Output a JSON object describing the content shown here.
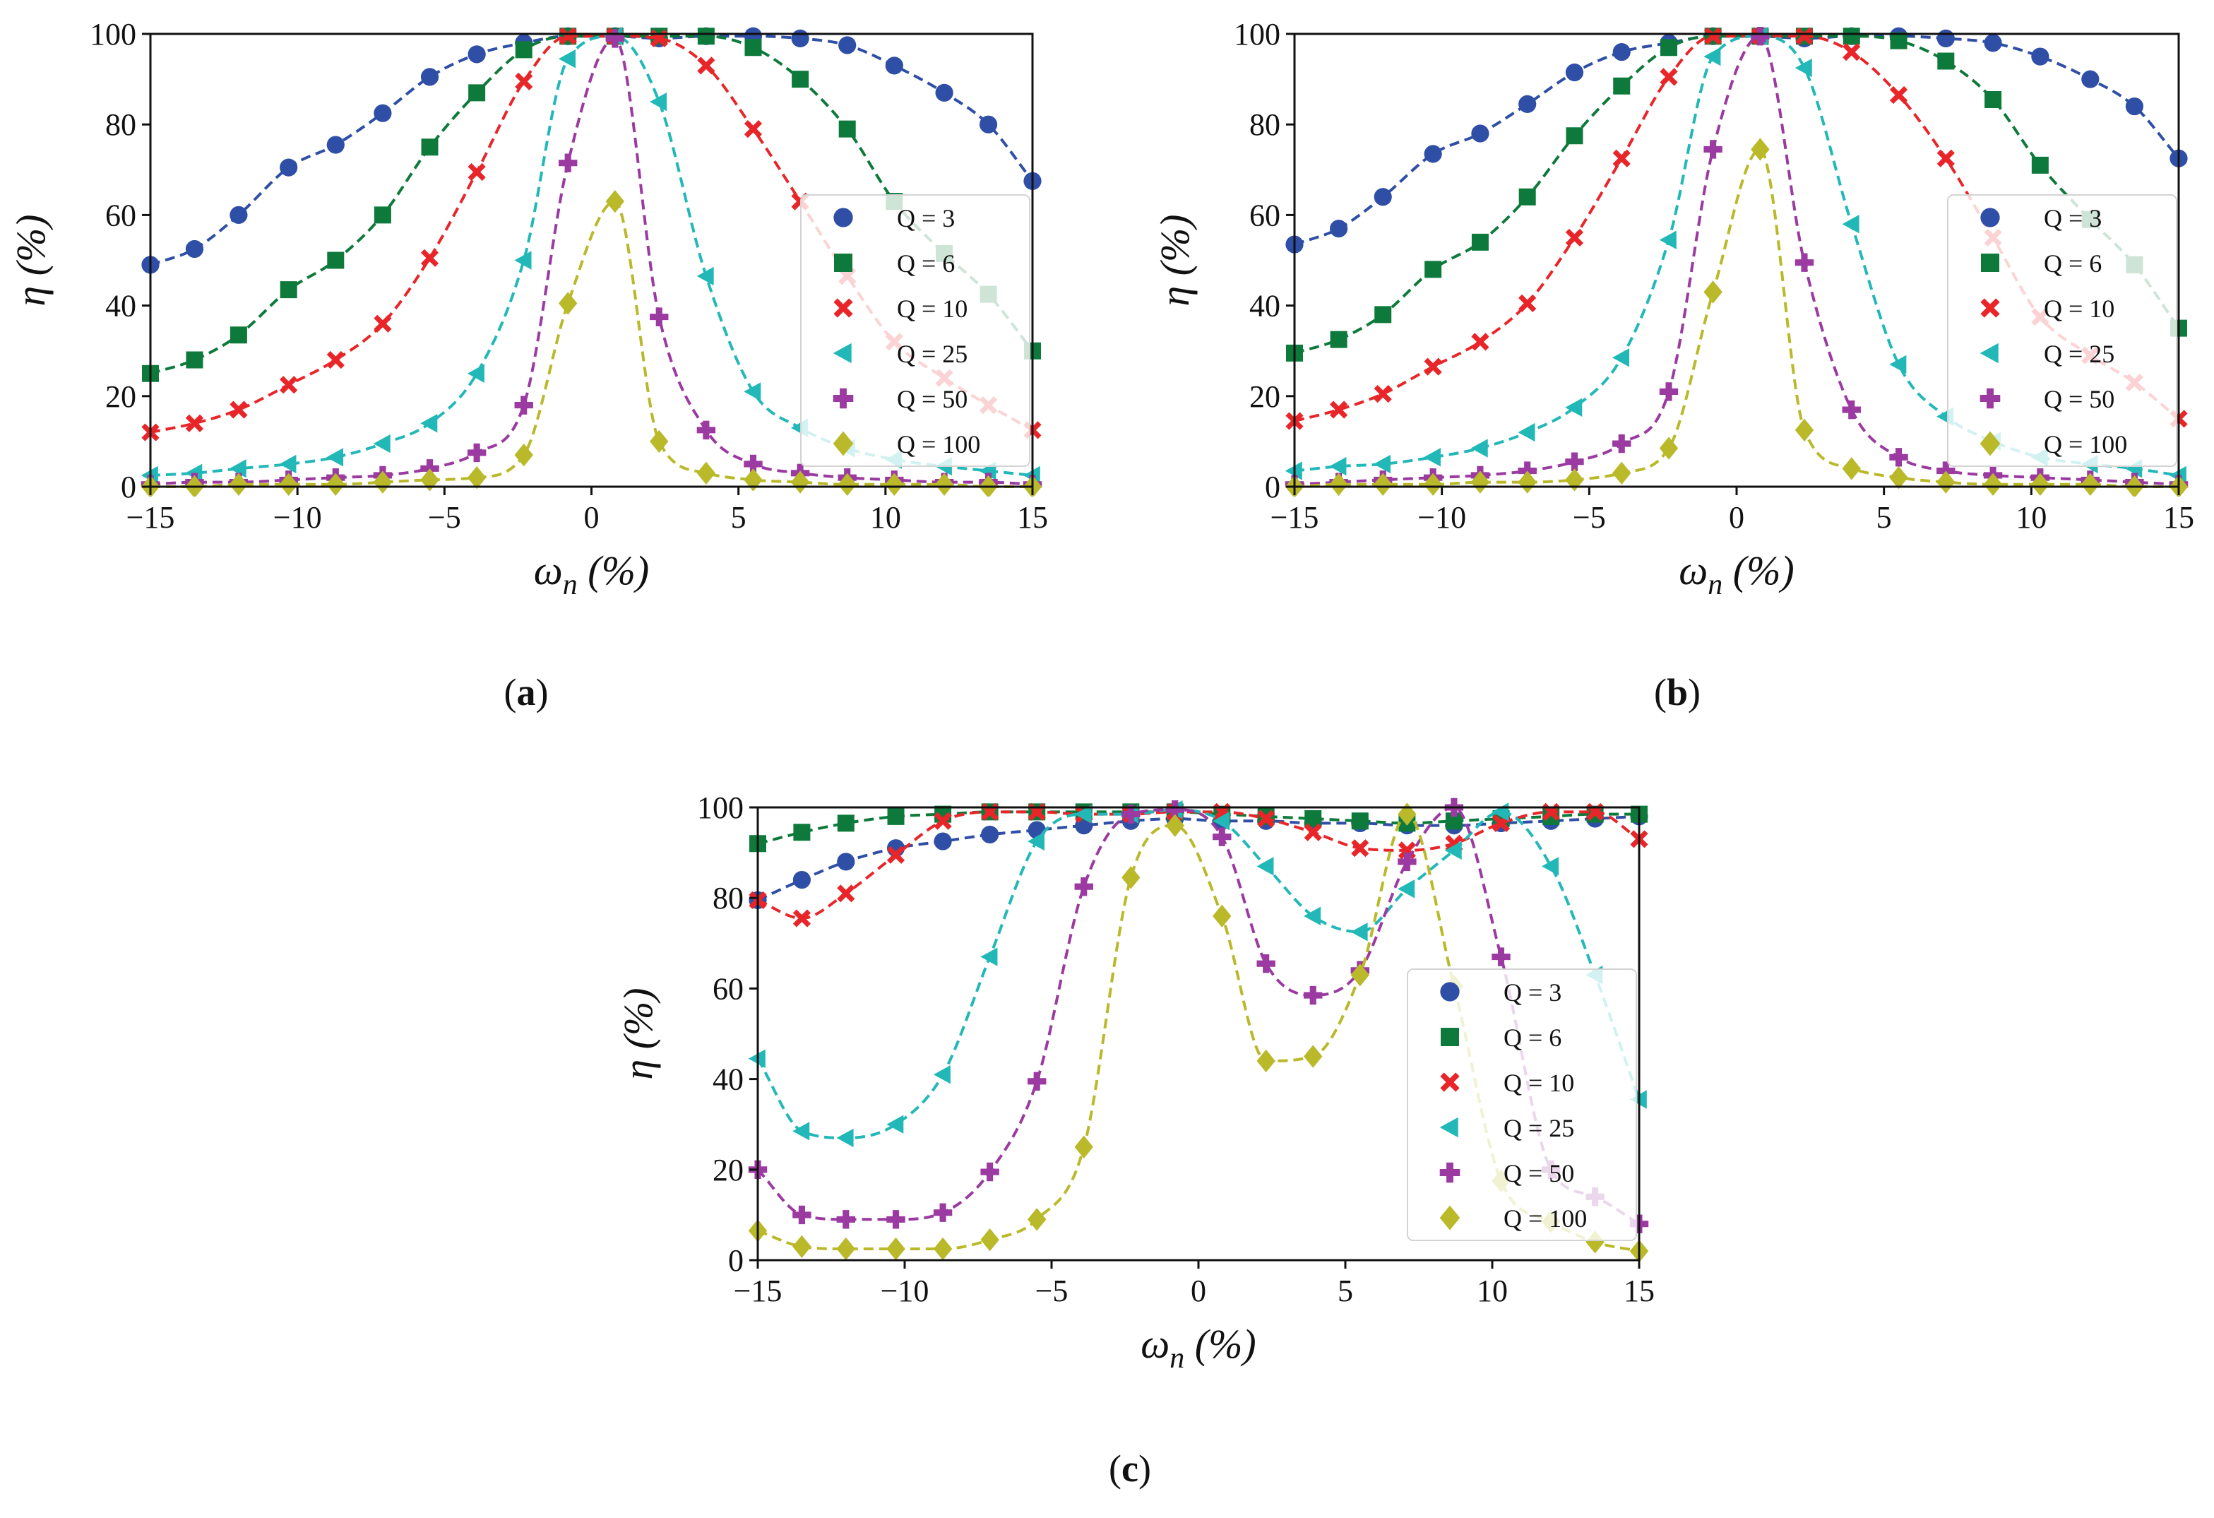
{
  "colors": {
    "Q3": "#2f4fa6",
    "Q6": "#0d7a3b",
    "Q10": "#e8262a",
    "Q25": "#22b8b8",
    "Q50": "#9b3aa1",
    "Q100": "#b9b92a"
  },
  "chart_data": [
    {
      "type": "line",
      "panel": "(a)",
      "xlabel": "ωn (%)",
      "ylabel": "η (%)",
      "xlim": [
        -15,
        15
      ],
      "ylim": [
        0,
        100
      ],
      "xticks": [
        "−15",
        "−10",
        "−5",
        "0",
        "5",
        "10",
        "15"
      ],
      "yticks": [
        "0",
        "20",
        "40",
        "60",
        "80",
        "100"
      ],
      "legend_position": "right",
      "x": [
        -15,
        -13.5,
        -12,
        -10.3,
        -8.7,
        -7.1,
        -5.5,
        -3.9,
        -2.3,
        -0.8,
        0.8,
        2.3,
        3.9,
        5.5,
        7.1,
        8.7,
        10.3,
        12,
        13.5,
        15
      ],
      "series": [
        {
          "name": "Q = 3",
          "marker": "circle",
          "color_key": "Q3",
          "values": [
            49,
            52.5,
            60,
            70.5,
            75.5,
            82.5,
            90.5,
            95.5,
            98,
            99.5,
            99.5,
            99,
            99.5,
            99.5,
            99,
            97.5,
            93,
            87,
            80,
            67.5
          ]
        },
        {
          "name": "Q = 6",
          "marker": "square",
          "color_key": "Q6",
          "values": [
            25,
            28,
            33.5,
            43.5,
            50,
            60,
            75,
            87,
            96.5,
            99.5,
            99.5,
            99.5,
            99.5,
            97,
            90,
            79,
            63,
            51.5,
            42.5,
            30
          ]
        },
        {
          "name": "Q = 10",
          "marker": "x",
          "color_key": "Q10",
          "values": [
            12,
            14,
            17,
            22.5,
            28,
            36,
            50.5,
            69.5,
            89.5,
            99.5,
            99.5,
            99,
            93,
            79,
            63,
            46.5,
            32,
            24,
            18,
            12.5
          ]
        },
        {
          "name": "Q = 25",
          "marker": "triangle-left",
          "color_key": "Q25",
          "values": [
            2.5,
            3,
            4,
            5,
            6.5,
            9.5,
            14,
            25,
            50,
            94.5,
            99.5,
            85,
            46.5,
            21,
            13,
            8.5,
            6,
            4.5,
            3.5,
            2.5
          ]
        },
        {
          "name": "Q = 50",
          "marker": "plus",
          "color_key": "Q50",
          "values": [
            0.5,
            1,
            1,
            1.5,
            2,
            2.5,
            4,
            7.5,
            18,
            71.5,
            99,
            37.5,
            12.5,
            5,
            3,
            2,
            1.5,
            1,
            1,
            0.5
          ]
        },
        {
          "name": "Q = 100",
          "marker": "diamond",
          "color_key": "Q100",
          "values": [
            0,
            0,
            0.5,
            0.5,
            0.5,
            1,
            1.5,
            2,
            7,
            40.5,
            63,
            10,
            3,
            1.5,
            1,
            0.5,
            0.5,
            0.5,
            0,
            0
          ]
        }
      ]
    },
    {
      "type": "line",
      "panel": "(b)",
      "xlabel": "ωn (%)",
      "ylabel": "η (%)",
      "xlim": [
        -15,
        15
      ],
      "ylim": [
        0,
        100
      ],
      "xticks": [
        "−15",
        "−10",
        "−5",
        "0",
        "5",
        "10",
        "15"
      ],
      "yticks": [
        "0",
        "20",
        "40",
        "60",
        "80",
        "100"
      ],
      "legend_position": "right",
      "x": [
        -15,
        -13.5,
        -12,
        -10.3,
        -8.7,
        -7.1,
        -5.5,
        -3.9,
        -2.3,
        -0.8,
        0.8,
        2.3,
        3.9,
        5.5,
        7.1,
        8.7,
        10.3,
        12,
        13.5,
        15
      ],
      "series": [
        {
          "name": "Q = 3",
          "marker": "circle",
          "color_key": "Q3",
          "values": [
            53.5,
            57,
            64,
            73.5,
            78,
            84.5,
            91.5,
            96,
            98,
            99.5,
            99.5,
            99,
            99.5,
            99.5,
            99,
            98,
            95,
            90,
            84,
            72.5
          ]
        },
        {
          "name": "Q = 6",
          "marker": "square",
          "color_key": "Q6",
          "values": [
            29.5,
            32.5,
            38,
            48,
            54,
            64,
            77.5,
            88.5,
            97,
            99.5,
            99.5,
            99.5,
            99.5,
            98.5,
            94,
            85.5,
            71,
            59,
            49,
            35
          ]
        },
        {
          "name": "Q = 10",
          "marker": "x",
          "color_key": "Q10",
          "values": [
            14.5,
            17,
            20.5,
            26.5,
            32,
            40.5,
            55,
            72.5,
            90.5,
            99.5,
            99.5,
            99.5,
            96,
            86.5,
            72.5,
            55,
            37.5,
            29,
            23,
            15
          ]
        },
        {
          "name": "Q = 25",
          "marker": "triangle-left",
          "color_key": "Q25",
          "values": [
            3.5,
            4.5,
            5,
            6.5,
            8.5,
            12,
            17.5,
            28.5,
            54.5,
            95,
            99.5,
            92.5,
            58,
            27,
            15.5,
            10,
            6.5,
            5,
            4,
            2.5
          ]
        },
        {
          "name": "Q = 50",
          "marker": "plus",
          "color_key": "Q50",
          "values": [
            0.5,
            1,
            1.5,
            2,
            2.5,
            3.5,
            5.5,
            9.5,
            21,
            74.5,
            99.5,
            49.5,
            17,
            6.5,
            3.5,
            2.5,
            2,
            1.5,
            1,
            0.5
          ]
        },
        {
          "name": "Q = 100",
          "marker": "diamond",
          "color_key": "Q100",
          "values": [
            0,
            0.5,
            0.5,
            0.5,
            1,
            1,
            1.5,
            3,
            8.5,
            43,
            74.5,
            12.5,
            4,
            2,
            1,
            0.5,
            0.5,
            0.5,
            0,
            0
          ]
        }
      ]
    },
    {
      "type": "line",
      "panel": "(c)",
      "xlabel": "ωn (%)",
      "ylabel": "η (%)",
      "xlim": [
        -15,
        15
      ],
      "ylim": [
        0,
        100
      ],
      "xticks": [
        "−15",
        "−10",
        "−5",
        "0",
        "5",
        "10",
        "15"
      ],
      "yticks": [
        "0",
        "20",
        "40",
        "60",
        "80",
        "100"
      ],
      "legend_position": "right",
      "x": [
        -15,
        -13.5,
        -12,
        -10.3,
        -8.7,
        -7.1,
        -5.5,
        -3.9,
        -2.3,
        -0.8,
        0.8,
        2.3,
        3.9,
        5.5,
        7.1,
        8.7,
        10.3,
        12,
        13.5,
        15
      ],
      "series": [
        {
          "name": "Q = 3",
          "marker": "circle",
          "color_key": "Q3",
          "values": [
            79.5,
            84,
            88,
            91,
            92.5,
            94,
            95,
            96,
            97,
            97.5,
            97,
            97,
            96.5,
            96.5,
            96,
            96,
            96.5,
            97,
            97.5,
            98
          ]
        },
        {
          "name": "Q = 6",
          "marker": "square",
          "color_key": "Q6",
          "values": [
            92,
            94.5,
            96.5,
            98,
            98.5,
            99,
            99,
            99,
            99,
            99,
            98.5,
            98,
            97.5,
            97,
            96.5,
            97,
            97.5,
            98,
            98.5,
            98.5
          ]
        },
        {
          "name": "Q = 10",
          "marker": "x",
          "color_key": "Q10",
          "values": [
            79.5,
            75.5,
            81,
            89.5,
            97,
            99,
            99,
            98.5,
            98.5,
            99,
            99,
            97.5,
            94.5,
            91,
            90.5,
            92,
            96.5,
            99,
            99,
            93
          ]
        },
        {
          "name": "Q = 25",
          "marker": "triangle-left",
          "color_key": "Q25",
          "values": [
            44.5,
            28.5,
            27,
            30,
            41,
            67,
            92.5,
            98.5,
            98.5,
            99.5,
            97,
            87,
            76,
            72.5,
            82,
            90.5,
            99,
            87,
            63,
            35.5
          ]
        },
        {
          "name": "Q = 50",
          "marker": "plus",
          "color_key": "Q50",
          "values": [
            20,
            10,
            9,
            9,
            10.5,
            19.5,
            39.5,
            82.5,
            98.5,
            99.5,
            93.5,
            65.5,
            58.5,
            64,
            88,
            100,
            67,
            20,
            14,
            8
          ]
        },
        {
          "name": "Q = 100",
          "marker": "diamond",
          "color_key": "Q100",
          "values": [
            6.5,
            3,
            2.5,
            2.5,
            2.5,
            4.5,
            9,
            25,
            84.5,
            96,
            76,
            44,
            45,
            63,
            98.5,
            60.5,
            17.5,
            8.5,
            4,
            2
          ]
        }
      ]
    }
  ]
}
